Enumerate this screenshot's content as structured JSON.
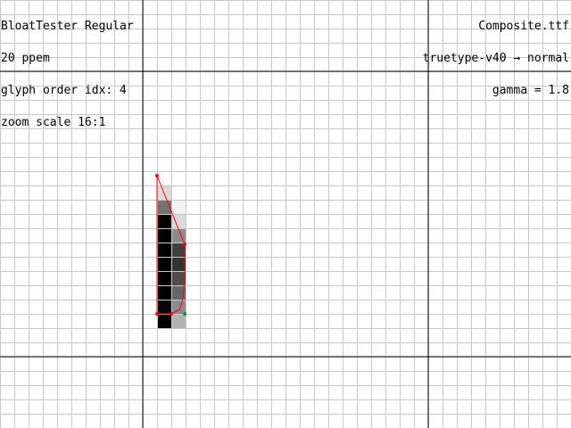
{
  "header_left": {
    "font_name": "BloatTester Regular",
    "ppem": "20 ppem",
    "glyph_index": "glyph order idx: 4",
    "zoom": "zoom scale 16:1"
  },
  "header_right": {
    "file_name": "Composite.ttf",
    "render_mode": "truetype-v40 → normal",
    "gamma": "gamma = 1.8"
  },
  "colors": {
    "background": "#ffffff",
    "grid": "#c8c8c8",
    "axis": "#000000",
    "outline": "#ff0000",
    "on_point": "#ff0000",
    "off_point": "#00a000",
    "pixel_dark": "#000000"
  },
  "glyph_pixels": [
    {
      "col": 0,
      "row": 0,
      "gray": 0.15
    },
    {
      "col": 0,
      "row": 1,
      "gray": 0.55
    },
    {
      "col": 0,
      "row": 2,
      "gray": 1.0
    },
    {
      "col": 0,
      "row": 3,
      "gray": 1.0
    },
    {
      "col": 0,
      "row": 4,
      "gray": 1.0
    },
    {
      "col": 0,
      "row": 5,
      "gray": 1.0
    },
    {
      "col": 0,
      "row": 6,
      "gray": 1.0
    },
    {
      "col": 0,
      "row": 7,
      "gray": 1.0
    },
    {
      "col": 0,
      "row": 8,
      "gray": 1.0
    },
    {
      "col": 0,
      "row": 9,
      "gray": 1.0
    },
    {
      "col": 1,
      "row": 0,
      "gray": 0.0
    },
    {
      "col": 1,
      "row": 1,
      "gray": 0.05
    },
    {
      "col": 1,
      "row": 2,
      "gray": 0.15
    },
    {
      "col": 1,
      "row": 3,
      "gray": 0.45
    },
    {
      "col": 1,
      "row": 4,
      "gray": 0.75
    },
    {
      "col": 1,
      "row": 5,
      "gray": 0.8
    },
    {
      "col": 1,
      "row": 6,
      "gray": 0.7
    },
    {
      "col": 1,
      "row": 7,
      "gray": 0.6
    },
    {
      "col": 1,
      "row": 8,
      "gray": 0.45
    },
    {
      "col": 1,
      "row": 9,
      "gray": 0.3
    }
  ]
}
